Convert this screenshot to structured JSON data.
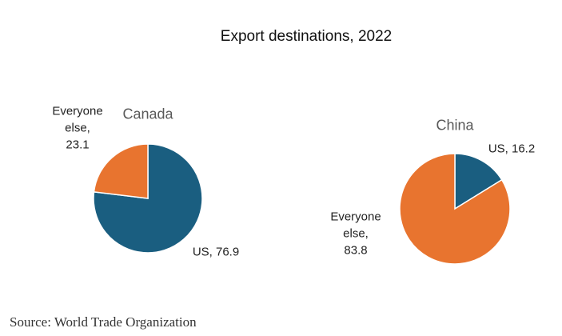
{
  "title": "Export destinations, 2022",
  "source": "Source: World Trade Organization",
  "chart_data": [
    {
      "type": "pie",
      "title": "Canada",
      "categories": [
        "US",
        "Everyone else"
      ],
      "values": [
        76.9,
        23.1
      ],
      "value_labels": [
        "US, 76.9",
        "Everyone\nelse,\n23.1"
      ],
      "colors": [
        "#1a5e80",
        "#e8742f"
      ]
    },
    {
      "type": "pie",
      "title": "China",
      "categories": [
        "US",
        "Everyone else"
      ],
      "values": [
        16.2,
        83.8
      ],
      "value_labels": [
        "US, 16.2",
        "Everyone\nelse,\n83.8"
      ],
      "colors": [
        "#1a5e80",
        "#e8742f"
      ]
    }
  ]
}
